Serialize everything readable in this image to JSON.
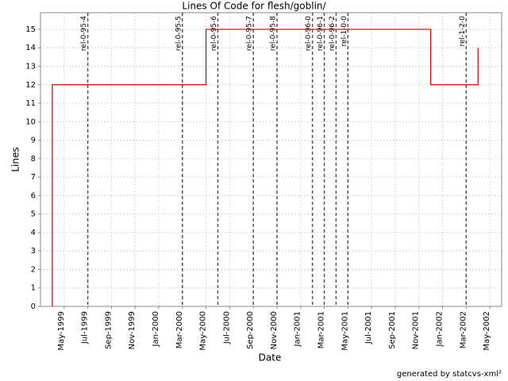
{
  "chart_data": {
    "type": "line",
    "title": "Lines Of Code for flesh/goblin/",
    "x_label": "Date",
    "y_label": "Lines",
    "footer": "generated by statcvs-xml²",
    "grid": true,
    "xlim": [
      "1999-03",
      "2002-06"
    ],
    "xticks": [
      {
        "value": "1999-05",
        "label": "May-1999"
      },
      {
        "value": "1999-07",
        "label": "Jul-1999"
      },
      {
        "value": "1999-09",
        "label": "Sep-1999"
      },
      {
        "value": "1999-11",
        "label": "Nov-1999"
      },
      {
        "value": "2000-01",
        "label": "Jan-2000"
      },
      {
        "value": "2000-03",
        "label": "Mar-2000"
      },
      {
        "value": "2000-05",
        "label": "May-2000"
      },
      {
        "value": "2000-07",
        "label": "Jul-2000"
      },
      {
        "value": "2000-09",
        "label": "Sep-2000"
      },
      {
        "value": "2000-11",
        "label": "Nov-2000"
      },
      {
        "value": "2001-01",
        "label": "Jan-2001"
      },
      {
        "value": "2001-03",
        "label": "Mar-2001"
      },
      {
        "value": "2001-05",
        "label": "May-2001"
      },
      {
        "value": "2001-07",
        "label": "Jul-2001"
      },
      {
        "value": "2001-09",
        "label": "Sep-2001"
      },
      {
        "value": "2001-11",
        "label": "Nov-2001"
      },
      {
        "value": "2002-01",
        "label": "Jan-2002"
      },
      {
        "value": "2002-03",
        "label": "Mar-2002"
      },
      {
        "value": "2002-05",
        "label": "May-2002"
      }
    ],
    "ylim": [
      0,
      15.9
    ],
    "yticks": [
      0,
      1,
      2,
      3,
      4,
      5,
      6,
      7,
      8,
      9,
      10,
      11,
      12,
      13,
      14,
      15
    ],
    "x": [
      "1999-04",
      "1999-04",
      "2000-05",
      "2000-05",
      "2001-12",
      "2001-12",
      "2002-04",
      "2002-04"
    ],
    "series": [
      {
        "color": "#cc0000",
        "values": [
          0,
          12,
          12,
          15,
          15,
          12,
          12,
          14
        ]
      }
    ],
    "releases": [
      {
        "label": "rel-0-95-4",
        "x": "1999-07"
      },
      {
        "label": "rel-0-95-5",
        "x": "2000-03"
      },
      {
        "label": "rel-0-95-6",
        "x": "2000-06"
      },
      {
        "label": "rel-0-95-7",
        "x": "2000-09"
      },
      {
        "label": "rel-0-95-8",
        "x": "2000-11"
      },
      {
        "label": "rel-0-96-0",
        "x": "2001-02"
      },
      {
        "label": "rel-0-96-1",
        "x": "2001-03"
      },
      {
        "label": "rel-0-96-2",
        "x": "2001-04"
      },
      {
        "label": "rel-1-0-0",
        "x": "2001-05"
      },
      {
        "label": "rel-1-2-0",
        "x": "2002-03"
      }
    ]
  }
}
